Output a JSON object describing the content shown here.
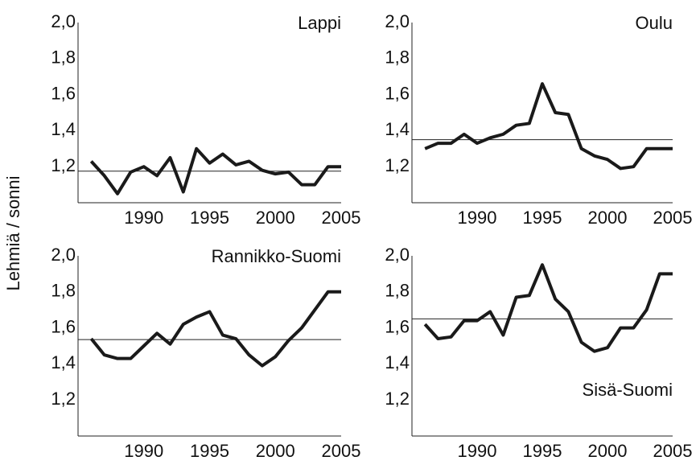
{
  "chart_data": [
    {
      "type": "line",
      "title": "Lappi",
      "title_position": "top-right",
      "ylabel": "Lehmiä / sonni",
      "x": [
        1986,
        1987,
        1988,
        1989,
        1990,
        1991,
        1992,
        1993,
        1994,
        1995,
        1996,
        1997,
        1998,
        1999,
        2000,
        2001,
        2002,
        2003,
        2004,
        2005
      ],
      "series": [
        {
          "color": "#1a1a1a",
          "values": [
            1.23,
            1.15,
            1.05,
            1.17,
            1.2,
            1.15,
            1.25,
            1.06,
            1.3,
            1.22,
            1.27,
            1.21,
            1.23,
            1.18,
            1.16,
            1.17,
            1.1,
            1.1,
            1.2,
            1.2
          ]
        }
      ],
      "reference_line": 1.175,
      "xlim": [
        1985,
        2005
      ],
      "xticks": [
        1990,
        1995,
        2000,
        2005
      ],
      "ylim": [
        1.0,
        2.0
      ],
      "yticks": [
        {
          "value": 1.2,
          "label": "1,2"
        },
        {
          "value": 1.4,
          "label": "1,4"
        },
        {
          "value": 1.6,
          "label": "1,6"
        },
        {
          "value": 1.8,
          "label": "1,8"
        },
        {
          "value": 2.0,
          "label": "2,0"
        }
      ]
    },
    {
      "type": "line",
      "title": "Oulu",
      "title_position": "top-right",
      "x": [
        1986,
        1987,
        1988,
        1989,
        1990,
        1991,
        1992,
        1993,
        1994,
        1995,
        1996,
        1997,
        1998,
        1999,
        2000,
        2001,
        2002,
        2003,
        2004,
        2005
      ],
      "series": [
        {
          "color": "#1a1a1a",
          "values": [
            1.3,
            1.33,
            1.33,
            1.38,
            1.33,
            1.36,
            1.38,
            1.43,
            1.44,
            1.66,
            1.5,
            1.49,
            1.3,
            1.26,
            1.24,
            1.19,
            1.2,
            1.3,
            1.3,
            1.3
          ]
        }
      ],
      "reference_line": 1.35,
      "xlim": [
        1985,
        2005
      ],
      "xticks": [
        1990,
        1995,
        2000,
        2005
      ],
      "ylim": [
        1.0,
        2.0
      ],
      "yticks": [
        {
          "value": 1.2,
          "label": "1,2"
        },
        {
          "value": 1.4,
          "label": "1,4"
        },
        {
          "value": 1.6,
          "label": "1,6"
        },
        {
          "value": 1.8,
          "label": "1,8"
        },
        {
          "value": 2.0,
          "label": "2,0"
        }
      ]
    },
    {
      "type": "line",
      "title": "Rannikko-Suomi",
      "title_position": "top-right",
      "x": [
        1986,
        1987,
        1988,
        1989,
        1990,
        1991,
        1992,
        1993,
        1994,
        1995,
        1996,
        1997,
        1998,
        1999,
        2000,
        2001,
        2002,
        2003,
        2004,
        2005
      ],
      "series": [
        {
          "color": "#1a1a1a",
          "values": [
            1.54,
            1.45,
            1.43,
            1.43,
            1.5,
            1.57,
            1.51,
            1.62,
            1.66,
            1.69,
            1.56,
            1.54,
            1.45,
            1.39,
            1.44,
            1.53,
            1.6,
            1.7,
            1.8,
            1.8
          ]
        }
      ],
      "reference_line": 1.535,
      "xlim": [
        1985,
        2005
      ],
      "xticks": [
        1990,
        1995,
        2000,
        2005
      ],
      "ylim": [
        1.0,
        2.0
      ],
      "yticks": [
        {
          "value": 1.2,
          "label": "1,2"
        },
        {
          "value": 1.4,
          "label": "1,4"
        },
        {
          "value": 1.6,
          "label": "1,6"
        },
        {
          "value": 1.8,
          "label": "1,8"
        },
        {
          "value": 2.0,
          "label": "2,0"
        }
      ]
    },
    {
      "type": "line",
      "title": "Sisä-Suomi",
      "title_position": "bottom-right",
      "x": [
        1986,
        1987,
        1988,
        1989,
        1990,
        1991,
        1992,
        1993,
        1994,
        1995,
        1996,
        1997,
        1998,
        1999,
        2000,
        2001,
        2002,
        2003,
        2004,
        2005
      ],
      "series": [
        {
          "color": "#1a1a1a",
          "values": [
            1.62,
            1.54,
            1.55,
            1.64,
            1.64,
            1.69,
            1.56,
            1.77,
            1.78,
            1.95,
            1.76,
            1.69,
            1.52,
            1.47,
            1.49,
            1.6,
            1.6,
            1.7,
            1.9,
            1.9
          ]
        }
      ],
      "reference_line": 1.65,
      "xlim": [
        1985,
        2005
      ],
      "xticks": [
        1990,
        1995,
        2000,
        2005
      ],
      "ylim": [
        1.0,
        2.0
      ],
      "yticks": [
        {
          "value": 1.2,
          "label": "1,2"
        },
        {
          "value": 1.4,
          "label": "1,4"
        },
        {
          "value": 1.6,
          "label": "1,6"
        },
        {
          "value": 1.8,
          "label": "1,8"
        },
        {
          "value": 2.0,
          "label": "2,0"
        }
      ]
    }
  ]
}
